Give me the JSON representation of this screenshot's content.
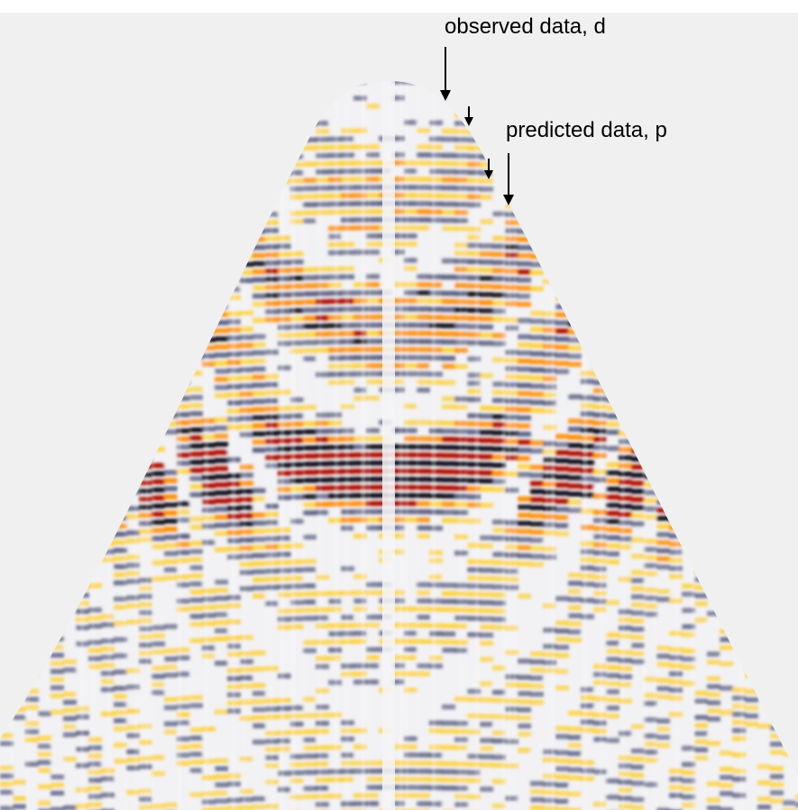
{
  "annotations": {
    "observed_label": "observed data, d",
    "predicted_label": "predicted data, p"
  },
  "colors": {
    "background": "#f0f0f0",
    "negative_peak": "#0a0a1e",
    "negative_mid": "#50567a",
    "neutral": "#f2f2f4",
    "positive_low": "#ffcc22",
    "positive_mid": "#ff8c00",
    "positive_peak": "#b01000"
  },
  "colormap": "seismic-style diverging (dark navy to white to yellow, orange, dark red)"
}
